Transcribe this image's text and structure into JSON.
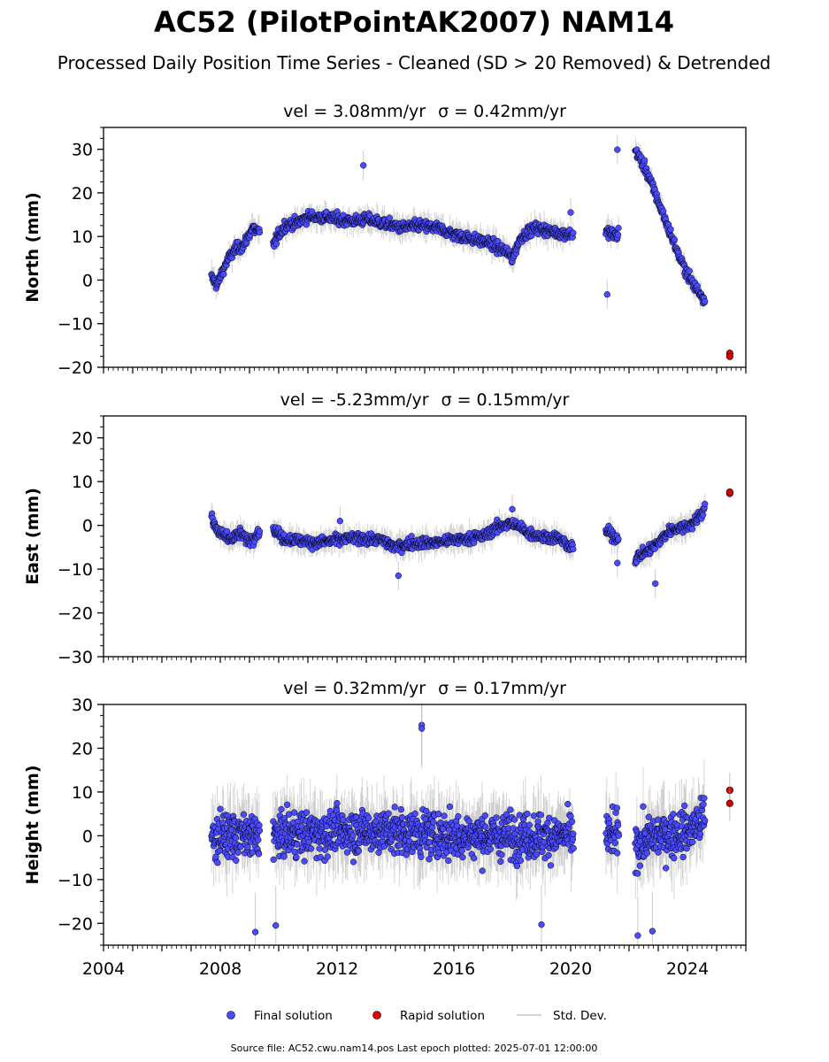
{
  "title": "AC52 (PilotPointAK2007) NAM14",
  "subtitle": "Processed Daily Position Time Series - Cleaned (SD > 20 Removed) & Detrended",
  "legend": {
    "final": "Final solution",
    "rapid": "Rapid solution",
    "std": "Std. Dev.",
    "placement": "bottom-center"
  },
  "footer": "Source file: AC52.cwu.nam14.pos  Last epoch plotted: 2025-07-01 12:00:00",
  "colors": {
    "final": "#4a4aff",
    "rapid": "#e00000",
    "std": "#b0b0b0",
    "edge": "#000000"
  },
  "chart_data": [
    {
      "type": "scatter",
      "panel": "north",
      "title_vel": "vel = 3.08mm/yr",
      "title_sigma": "σ = 0.42mm/yr",
      "ylabel": "North (mm)",
      "ylim": [
        -20,
        35
      ],
      "xlim": [
        2004.0,
        2026.0
      ],
      "yticks": [
        -20,
        -10,
        0,
        10,
        20,
        30
      ],
      "yticklabels": [
        "−20",
        "−10",
        "0",
        "10",
        "20",
        "30"
      ],
      "final_trend": [
        [
          2007.7,
          0.5
        ],
        [
          2007.9,
          -1.0
        ],
        [
          2008.2,
          4.0
        ],
        [
          2008.5,
          7.0
        ],
        [
          2008.8,
          8.0
        ],
        [
          2009.1,
          12.0
        ],
        [
          2009.3,
          11.0
        ],
        [
          2009.8,
          8.0
        ],
        [
          2010.2,
          12.5
        ],
        [
          2010.6,
          13.0
        ],
        [
          2011.0,
          14.5
        ],
        [
          2011.5,
          14.5
        ],
        [
          2012.0,
          14.0
        ],
        [
          2012.6,
          13.5
        ],
        [
          2013.0,
          14.0
        ],
        [
          2013.6,
          13.0
        ],
        [
          2014.2,
          12.0
        ],
        [
          2014.8,
          12.5
        ],
        [
          2015.4,
          12.0
        ],
        [
          2016.0,
          10.5
        ],
        [
          2016.6,
          9.5
        ],
        [
          2017.2,
          8.5
        ],
        [
          2017.8,
          6.5
        ],
        [
          2018.0,
          5.0
        ],
        [
          2018.3,
          10.0
        ],
        [
          2018.8,
          12.0
        ],
        [
          2019.4,
          11.0
        ],
        [
          2020.0,
          10.5
        ],
        [
          2021.3,
          11.0
        ],
        [
          2021.6,
          10.0
        ],
        [
          2022.2,
          30.0
        ],
        [
          2022.6,
          25.0
        ],
        [
          2023.0,
          18.0
        ],
        [
          2023.4,
          11.0
        ],
        [
          2023.8,
          4.0
        ],
        [
          2024.2,
          -1.0
        ],
        [
          2024.6,
          -4.5
        ]
      ],
      "final_outliers": [
        [
          2012.9,
          26.3
        ],
        [
          2021.6,
          29.9
        ],
        [
          2021.25,
          -3.3
        ],
        [
          2020.0,
          15.5
        ]
      ],
      "rapid": [
        [
          2025.45,
          -16.8
        ],
        [
          2025.45,
          -17.5
        ]
      ],
      "gaps": [
        [
          2009.35,
          2009.8
        ],
        [
          2020.1,
          2021.2
        ],
        [
          2021.65,
          2022.2
        ],
        [
          2024.7,
          2025.3
        ]
      ]
    },
    {
      "type": "scatter",
      "panel": "east",
      "title_vel": "vel = -5.23mm/yr",
      "title_sigma": "σ = 0.15mm/yr",
      "ylabel": "East (mm)",
      "ylim": [
        -30,
        25
      ],
      "xlim": [
        2004.0,
        2026.0
      ],
      "yticks": [
        -30,
        -20,
        -10,
        0,
        10,
        20
      ],
      "yticklabels": [
        "−30",
        "−20",
        "−10",
        "0",
        "10",
        "20"
      ],
      "final_trend": [
        [
          2007.7,
          1.5
        ],
        [
          2008.0,
          -2.0
        ],
        [
          2008.3,
          -3.0
        ],
        [
          2008.7,
          -2.0
        ],
        [
          2009.0,
          -3.5
        ],
        [
          2009.3,
          -1.5
        ],
        [
          2009.8,
          -1.0
        ],
        [
          2010.2,
          -3.0
        ],
        [
          2010.8,
          -3.5
        ],
        [
          2011.3,
          -4.0
        ],
        [
          2011.8,
          -3.5
        ],
        [
          2012.4,
          -3.0
        ],
        [
          2013.0,
          -3.0
        ],
        [
          2013.6,
          -3.5
        ],
        [
          2014.0,
          -5.0
        ],
        [
          2014.6,
          -4.0
        ],
        [
          2015.2,
          -4.0
        ],
        [
          2015.8,
          -3.5
        ],
        [
          2016.4,
          -3.0
        ],
        [
          2017.0,
          -2.5
        ],
        [
          2017.6,
          0.0
        ],
        [
          2018.0,
          0.5
        ],
        [
          2018.5,
          -1.5
        ],
        [
          2019.0,
          -2.5
        ],
        [
          2019.6,
          -3.0
        ],
        [
          2020.0,
          -5.0
        ],
        [
          2021.3,
          -1.5
        ],
        [
          2021.6,
          -3.0
        ],
        [
          2022.2,
          -7.5
        ],
        [
          2022.6,
          -6.0
        ],
        [
          2023.0,
          -4.0
        ],
        [
          2023.4,
          -1.0
        ],
        [
          2023.8,
          -0.5
        ],
        [
          2024.2,
          0.5
        ],
        [
          2024.6,
          4.0
        ]
      ],
      "final_outliers": [
        [
          2014.1,
          -11.5
        ],
        [
          2022.9,
          -13.3
        ],
        [
          2021.6,
          -8.6
        ],
        [
          2012.1,
          1.0
        ],
        [
          2018.0,
          3.7
        ]
      ],
      "rapid": [
        [
          2025.45,
          7.3
        ],
        [
          2025.45,
          7.6
        ]
      ],
      "gaps": [
        [
          2009.35,
          2009.8
        ],
        [
          2020.1,
          2021.2
        ],
        [
          2021.65,
          2022.2
        ],
        [
          2024.7,
          2025.3
        ]
      ]
    },
    {
      "type": "scatter",
      "panel": "height",
      "title_vel": "vel = 0.32mm/yr",
      "title_sigma": "σ = 0.17mm/yr",
      "ylabel": "Height (mm)",
      "ylim": [
        -25,
        30
      ],
      "xlim": [
        2004.0,
        2026.0
      ],
      "yticks": [
        -20,
        -10,
        0,
        10,
        20,
        30
      ],
      "yticklabels": [
        "−20",
        "−10",
        "0",
        "10",
        "20",
        "30"
      ],
      "xticks": [
        2004,
        2008,
        2012,
        2016,
        2020,
        2024
      ],
      "xticklabels": [
        "2004",
        "2008",
        "2012",
        "2016",
        "2020",
        "2024"
      ],
      "final_trend": [
        [
          2007.7,
          0.0
        ],
        [
          2009.3,
          0.0
        ],
        [
          2009.8,
          0.0
        ],
        [
          2012.0,
          1.0
        ],
        [
          2014.0,
          1.0
        ],
        [
          2016.0,
          0.0
        ],
        [
          2018.0,
          0.0
        ],
        [
          2020.0,
          0.0
        ],
        [
          2021.3,
          0.0
        ],
        [
          2021.6,
          0.0
        ],
        [
          2022.2,
          -2.0
        ],
        [
          2023.0,
          0.0
        ],
        [
          2024.0,
          1.0
        ],
        [
          2024.6,
          4.0
        ]
      ],
      "final_outliers": [
        [
          2014.9,
          25.3
        ],
        [
          2014.9,
          24.5
        ],
        [
          2022.3,
          -22.8
        ],
        [
          2009.2,
          -22.0
        ],
        [
          2009.9,
          -20.5
        ],
        [
          2022.8,
          -21.8
        ],
        [
          2019.0,
          -20.3
        ]
      ],
      "rapid": [
        [
          2025.45,
          10.4
        ],
        [
          2025.45,
          7.4
        ]
      ],
      "gaps": [
        [
          2009.35,
          2009.8
        ],
        [
          2020.1,
          2021.2
        ],
        [
          2021.65,
          2022.2
        ],
        [
          2024.7,
          2025.3
        ]
      ]
    }
  ]
}
